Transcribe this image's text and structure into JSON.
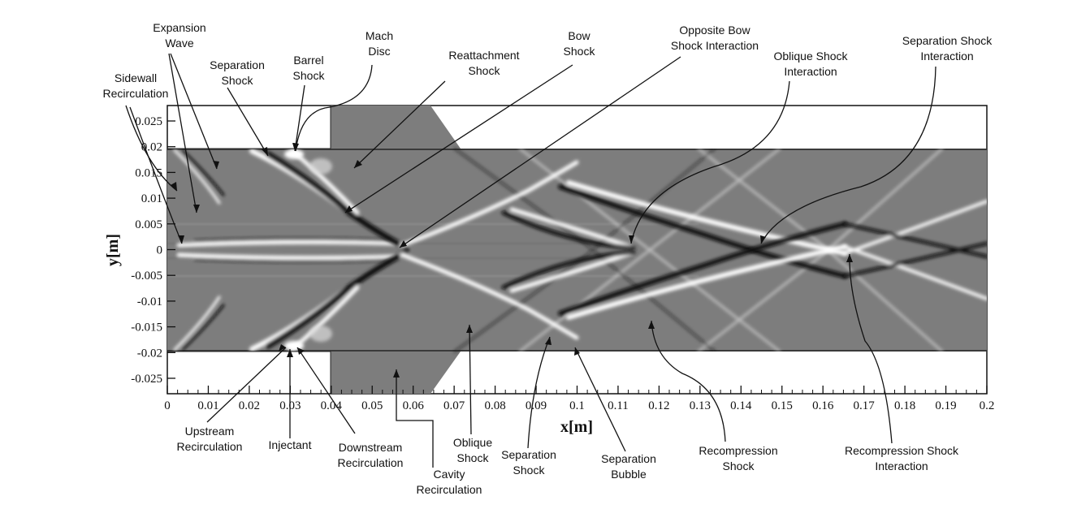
{
  "axes": {
    "x_title": "x[m]",
    "y_title": "y[m]",
    "x_ticks": [
      "0",
      "0.01",
      "0.02",
      "0.03",
      "0.04",
      "0.05",
      "0.06",
      "0.07",
      "0.08",
      "0.09",
      "0.1",
      "0.11",
      "0.12",
      "0.13",
      "0.14",
      "0.15",
      "0.16",
      "0.17",
      "0.18",
      "0.19",
      "0.2"
    ],
    "y_ticks": [
      "0.025",
      "0.02",
      "0.015",
      "0.01",
      "0.005",
      "0",
      "-0.005",
      "-0.01",
      "-0.015",
      "-0.02",
      "-0.025"
    ],
    "xlim": [
      0,
      0.2
    ],
    "ylim": [
      -0.028,
      0.028
    ]
  },
  "colors": {
    "field": "#7d7d7d",
    "shock_light": "#ffffff",
    "shock_dark": "#0a0a0a"
  },
  "labels": {
    "expansion_wave": [
      "Expansion",
      "Wave"
    ],
    "sidewall_recirculation": [
      "Sidewall",
      "Recirculation"
    ],
    "separation_shock_top": [
      "Separation",
      "Shock"
    ],
    "barrel_shock": [
      "Barrel",
      "Shock"
    ],
    "mach_disc": [
      "Mach",
      "Disc"
    ],
    "reattachment_shock": [
      "Reattachment",
      "Shock"
    ],
    "bow_shock": [
      "Bow",
      "Shock"
    ],
    "opposite_bow": [
      "Opposite Bow",
      "Shock Interaction"
    ],
    "oblique_shock_interaction": [
      "Oblique Shock",
      "Interaction"
    ],
    "separation_shock_interaction": [
      "Separation Shock",
      "Interaction"
    ],
    "upstream_recirculation": [
      "Upstream",
      "Recirculation"
    ],
    "injectant": [
      "Injectant"
    ],
    "downstream_recirculation": [
      "Downstream",
      "Recirculation"
    ],
    "cavity_recirculation": [
      "Cavity",
      "Recirculation"
    ],
    "oblique_shock": [
      "Oblique",
      "Shock"
    ],
    "separation_shock_bottom": [
      "Separation",
      "Shock"
    ],
    "separation_bubble": [
      "Separation",
      "Bubble"
    ],
    "recompression_shock": [
      "Recompression",
      "Shock"
    ],
    "recompression_interaction": [
      "Recompression Shock",
      "Interaction"
    ]
  }
}
